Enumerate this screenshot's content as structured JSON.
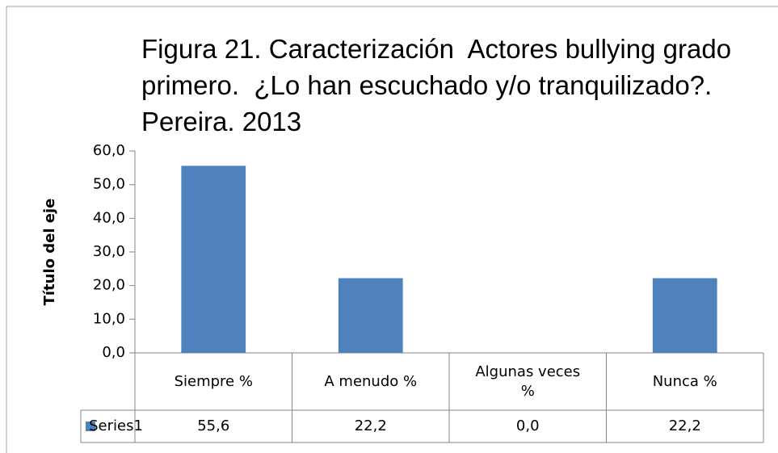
{
  "chart_data": {
    "type": "bar",
    "title": "Figura 21. Caracterización  Actores bullying grado primero.  ¿Lo han escuchado y/o tranquilizado?. Pereira. 2013",
    "y_label": "Título del eje",
    "categories": [
      "Siempre %",
      "A menudo %",
      "Algunas veces %",
      "Nunca %"
    ],
    "series": [
      {
        "name": "Series1",
        "color": "#4f81bd",
        "values": [
          55.6,
          22.2,
          0,
          22.2
        ],
        "value_labels": [
          "55,6",
          "22,2",
          "0,0",
          "22,2"
        ]
      }
    ],
    "ylim": [
      0,
      60
    ],
    "yticks": [
      {
        "value": 0,
        "label": "0,0"
      },
      {
        "value": 10,
        "label": "10,0"
      },
      {
        "value": 20,
        "label": "20,0"
      },
      {
        "value": 30,
        "label": "30,0"
      },
      {
        "value": 40,
        "label": "40,0"
      },
      {
        "value": 50,
        "label": "50,0"
      },
      {
        "value": 60,
        "label": "60,0"
      }
    ],
    "grid": false,
    "data_table": true
  }
}
